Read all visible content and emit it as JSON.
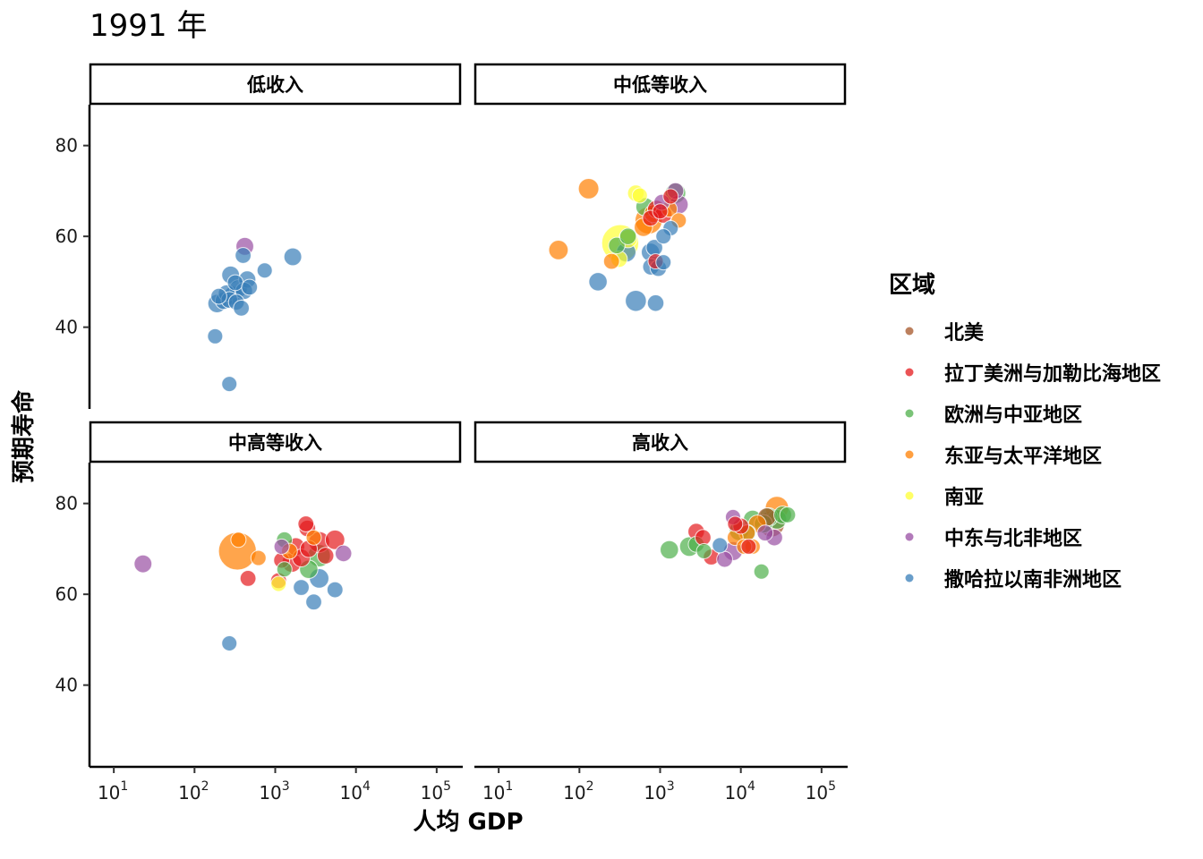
{
  "title": "1991 年",
  "chart_data": {
    "type": "scatter",
    "title": "1991 年",
    "xlabel": "人均 GDP",
    "ylabel": "预期寿命",
    "x_scale": "log10",
    "xlim": [
      5,
      200000
    ],
    "ylim": [
      22,
      89
    ],
    "x_tick_labels": [
      "10^1",
      "10^2",
      "10^3",
      "10^4",
      "10^5"
    ],
    "y_tick_labels": [
      "40",
      "60",
      "80"
    ],
    "grid": false,
    "legend": {
      "title": "区域",
      "position": "right",
      "items": [
        {
          "label": "北美",
          "color": "#A65628"
        },
        {
          "label": "拉丁美洲与加勒比海地区",
          "color": "#E41A1C"
        },
        {
          "label": "欧洲与中亚地区",
          "color": "#4DAF4A"
        },
        {
          "label": "东亚与太平洋地区",
          "color": "#FF7F00"
        },
        {
          "label": "南亚",
          "color": "#FFFF33"
        },
        {
          "label": "中东与北非地区",
          "color": "#984EA3"
        },
        {
          "label": "撒哈拉以南非洲地区",
          "color": "#377EB8"
        }
      ]
    },
    "size_note": "point area proportional to population (relative)",
    "panels": [
      {
        "title": "低收入",
        "points": [
          {
            "region": "中东与北非地区",
            "x": 420,
            "y": 57.8,
            "size": 1.5
          },
          {
            "region": "撒哈拉以南非洲地区",
            "x": 1650,
            "y": 55.5,
            "size": 1.5
          },
          {
            "region": "撒哈拉以南非洲地区",
            "x": 400,
            "y": 55.8,
            "size": 1.2
          },
          {
            "region": "撒哈拉以南非洲地区",
            "x": 740,
            "y": 52.5,
            "size": 1.1
          },
          {
            "region": "撒哈拉以南非洲地区",
            "x": 280,
            "y": 51.5,
            "size": 1.5
          },
          {
            "region": "撒哈拉以南非洲地区",
            "x": 450,
            "y": 50.5,
            "size": 1.4
          },
          {
            "region": "撒哈拉以南非洲地区",
            "x": 320,
            "y": 49.8,
            "size": 1.2
          },
          {
            "region": "撒哈拉以南非洲地区",
            "x": 350,
            "y": 48.5,
            "size": 1.5
          },
          {
            "region": "撒哈拉以南非洲地区",
            "x": 480,
            "y": 48.8,
            "size": 1.2
          },
          {
            "region": "撒哈拉以南非洲地区",
            "x": 250,
            "y": 47.5,
            "size": 1.3
          },
          {
            "region": "撒哈拉以南非洲地区",
            "x": 300,
            "y": 47.0,
            "size": 1.6
          },
          {
            "region": "撒哈拉以南非洲地区",
            "x": 200,
            "y": 46.8,
            "size": 1.2
          },
          {
            "region": "撒哈拉以南非洲地区",
            "x": 410,
            "y": 48.0,
            "size": 1.4
          },
          {
            "region": "撒哈拉以南非洲地区",
            "x": 270,
            "y": 46.0,
            "size": 1.3
          },
          {
            "region": "撒哈拉以南非洲地区",
            "x": 330,
            "y": 45.5,
            "size": 1.2
          },
          {
            "region": "撒哈拉以南非洲地区",
            "x": 230,
            "y": 45.8,
            "size": 1.4
          },
          {
            "region": "撒哈拉以南非洲地区",
            "x": 190,
            "y": 45.2,
            "size": 1.6
          },
          {
            "region": "撒哈拉以南非洲地区",
            "x": 380,
            "y": 44.2,
            "size": 1.2
          },
          {
            "region": "撒哈拉以南非洲地区",
            "x": 180,
            "y": 38.0,
            "size": 1.1
          },
          {
            "region": "撒哈拉以南非洲地区",
            "x": 270,
            "y": 27.5,
            "size": 1.1
          }
        ]
      },
      {
        "title": "中低等收入",
        "points": [
          {
            "region": "东亚与太平洋地区",
            "x": 130,
            "y": 70.5,
            "size": 2.0
          },
          {
            "region": "东亚与太平洋地区",
            "x": 55,
            "y": 57.0,
            "size": 1.8
          },
          {
            "region": "南亚",
            "x": 320,
            "y": 58.5,
            "size": 6.5
          },
          {
            "region": "南亚",
            "x": 500,
            "y": 69.5,
            "size": 1.3
          },
          {
            "region": "南亚",
            "x": 560,
            "y": 69.0,
            "size": 1.1
          },
          {
            "region": "南亚",
            "x": 400,
            "y": 59.5,
            "size": 1.6
          },
          {
            "region": "南亚",
            "x": 310,
            "y": 55.0,
            "size": 1.3
          },
          {
            "region": "东亚与太平洋地区",
            "x": 720,
            "y": 63.5,
            "size": 3.5
          },
          {
            "region": "东亚与太平洋地区",
            "x": 620,
            "y": 62.0,
            "size": 1.6
          },
          {
            "region": "东亚与太平洋地区",
            "x": 820,
            "y": 65.0,
            "size": 1.5
          },
          {
            "region": "东亚与太平洋地区",
            "x": 1700,
            "y": 63.5,
            "size": 1.1
          },
          {
            "region": "东亚与太平洋地区",
            "x": 1300,
            "y": 66.0,
            "size": 1.2
          },
          {
            "region": "东亚与太平洋地区",
            "x": 250,
            "y": 54.5,
            "size": 1.2
          },
          {
            "region": "拉丁美洲与加勒比海地区",
            "x": 900,
            "y": 66.0,
            "size": 1.5
          },
          {
            "region": "拉丁美洲与加勒比海地区",
            "x": 1100,
            "y": 64.8,
            "size": 1.4
          },
          {
            "region": "拉丁美洲与加勒比海地区",
            "x": 1350,
            "y": 68.8,
            "size": 1.1
          },
          {
            "region": "拉丁美洲与加勒比海地区",
            "x": 760,
            "y": 64.0,
            "size": 1.2
          },
          {
            "region": "拉丁美洲与加勒比海地区",
            "x": 1000,
            "y": 65.5,
            "size": 1.1
          },
          {
            "region": "拉丁美洲与加勒比海地区",
            "x": 880,
            "y": 54.5,
            "size": 1.1
          },
          {
            "region": "欧洲与中亚地区",
            "x": 1550,
            "y": 69.5,
            "size": 2.0
          },
          {
            "region": "欧洲与中亚地区",
            "x": 650,
            "y": 66.5,
            "size": 1.6
          },
          {
            "region": "欧洲与中亚地区",
            "x": 290,
            "y": 58.0,
            "size": 1.3
          },
          {
            "region": "欧洲与中亚地区",
            "x": 400,
            "y": 60.0,
            "size": 1.3
          },
          {
            "region": "中东与北非地区",
            "x": 1700,
            "y": 67.0,
            "size": 1.7
          },
          {
            "region": "中东与北非地区",
            "x": 1550,
            "y": 70.0,
            "size": 1.3
          },
          {
            "region": "中东与北非地区",
            "x": 1050,
            "y": 67.5,
            "size": 1.2
          },
          {
            "region": "撒哈拉以南非洲地区",
            "x": 380,
            "y": 56.5,
            "size": 1.8
          },
          {
            "region": "撒哈拉以南非洲地区",
            "x": 760,
            "y": 56.5,
            "size": 1.6
          },
          {
            "region": "撒哈拉以南非洲地区",
            "x": 850,
            "y": 57.5,
            "size": 1.3
          },
          {
            "region": "撒哈拉以南非洲地区",
            "x": 1350,
            "y": 61.8,
            "size": 1.1
          },
          {
            "region": "撒哈拉以南非洲地区",
            "x": 1100,
            "y": 60.0,
            "size": 1.1
          },
          {
            "region": "撒哈拉以南非洲地区",
            "x": 770,
            "y": 53.3,
            "size": 1.3
          },
          {
            "region": "撒哈拉以南非洲地区",
            "x": 950,
            "y": 53.0,
            "size": 1.3
          },
          {
            "region": "撒哈拉以南非洲地区",
            "x": 1100,
            "y": 54.3,
            "size": 1.1
          },
          {
            "region": "撒哈拉以南非洲地区",
            "x": 170,
            "y": 50.0,
            "size": 1.6
          },
          {
            "region": "撒哈拉以南非洲地区",
            "x": 500,
            "y": 45.8,
            "size": 2.1
          },
          {
            "region": "撒哈拉以南非洲地区",
            "x": 880,
            "y": 45.3,
            "size": 1.3
          }
        ]
      },
      {
        "title": "中高等收入",
        "points": [
          {
            "region": "东亚与太平洋地区",
            "x": 340,
            "y": 69.5,
            "size": 6.8
          },
          {
            "region": "中东与北非地区",
            "x": 23,
            "y": 66.7,
            "size": 1.5
          },
          {
            "region": "东亚与太平洋地区",
            "x": 350,
            "y": 72.0,
            "size": 1.1
          },
          {
            "region": "东亚与太平洋地区",
            "x": 620,
            "y": 68.0,
            "size": 1.1
          },
          {
            "region": "拉丁美洲与加勒比海地区",
            "x": 460,
            "y": 63.5,
            "size": 1.2
          },
          {
            "region": "撒哈拉以南非洲地区",
            "x": 270,
            "y": 49.2,
            "size": 1.1
          },
          {
            "region": "拉丁美洲与加勒比海地区",
            "x": 1100,
            "y": 63.0,
            "size": 1.2
          },
          {
            "region": "南亚",
            "x": 1100,
            "y": 62.3,
            "size": 1.1
          },
          {
            "region": "拉丁美洲与加勒比海地区",
            "x": 2400,
            "y": 75.5,
            "size": 1.2
          },
          {
            "region": "拉丁美洲与加勒比海地区",
            "x": 2500,
            "y": 74.5,
            "size": 1.3
          },
          {
            "region": "拉丁美洲与加勒比海地区",
            "x": 3500,
            "y": 71.5,
            "size": 2.1
          },
          {
            "region": "拉丁美洲与加勒比海地区",
            "x": 5500,
            "y": 72.0,
            "size": 1.8
          },
          {
            "region": "拉丁美洲与加勒比海地区",
            "x": 1800,
            "y": 70.5,
            "size": 1.5
          },
          {
            "region": "拉丁美洲与加勒比海地区",
            "x": 2600,
            "y": 70.0,
            "size": 1.4
          },
          {
            "region": "拉丁美洲与加勒比海地区",
            "x": 1600,
            "y": 67.0,
            "size": 1.8
          },
          {
            "region": "拉丁美洲与加勒比海地区",
            "x": 2100,
            "y": 68.0,
            "size": 1.5
          },
          {
            "region": "拉丁美洲与加勒比海地区",
            "x": 1200,
            "y": 67.5,
            "size": 1.2
          },
          {
            "region": "拉丁美洲与加勒比海地区",
            "x": 4200,
            "y": 68.5,
            "size": 1.3
          },
          {
            "region": "欧洲与中亚地区",
            "x": 3500,
            "y": 68.5,
            "size": 2.4
          },
          {
            "region": "欧洲与中亚地区",
            "x": 2600,
            "y": 65.5,
            "size": 1.6
          },
          {
            "region": "欧洲与中亚地区",
            "x": 1300,
            "y": 72.0,
            "size": 1.2
          },
          {
            "region": "欧洲与中亚地区",
            "x": 1300,
            "y": 65.5,
            "size": 1.1
          },
          {
            "region": "中东与北非地区",
            "x": 7000,
            "y": 69.0,
            "size": 1.3
          },
          {
            "region": "中东与北非地区",
            "x": 1200,
            "y": 70.5,
            "size": 1.1
          },
          {
            "region": "东亚与太平洋地区",
            "x": 1500,
            "y": 69.5,
            "size": 1.2
          },
          {
            "region": "东亚与太平洋地区",
            "x": 3000,
            "y": 72.5,
            "size": 1.1
          },
          {
            "region": "撒哈拉以南非洲地区",
            "x": 3500,
            "y": 63.5,
            "size": 1.8
          },
          {
            "region": "撒哈拉以南非洲地区",
            "x": 2100,
            "y": 61.5,
            "size": 1.2
          },
          {
            "region": "撒哈拉以南非洲地区",
            "x": 5500,
            "y": 61.0,
            "size": 1.2
          },
          {
            "region": "撒哈拉以南非洲地区",
            "x": 3000,
            "y": 58.3,
            "size": 1.2
          }
        ]
      },
      {
        "title": "高收入",
        "points": [
          {
            "region": "欧洲与中亚地区",
            "x": 1300,
            "y": 69.8,
            "size": 1.6
          },
          {
            "region": "欧洲与中亚地区",
            "x": 2300,
            "y": 70.5,
            "size": 1.8
          },
          {
            "region": "欧洲与中亚地区",
            "x": 2800,
            "y": 71.0,
            "size": 1.2
          },
          {
            "region": "欧洲与中亚地区",
            "x": 3500,
            "y": 69.5,
            "size": 1.1
          },
          {
            "region": "拉丁美洲与加勒比海地区",
            "x": 2800,
            "y": 73.8,
            "size": 1.3
          },
          {
            "region": "拉丁美洲与加勒比海地区",
            "x": 3400,
            "y": 72.5,
            "size": 1.2
          },
          {
            "region": "拉丁美洲与加勒比海地区",
            "x": 4300,
            "y": 68.2,
            "size": 1.2
          },
          {
            "region": "撒哈拉以南非洲地区",
            "x": 5500,
            "y": 70.8,
            "size": 1.1
          },
          {
            "region": "中东与北非地区",
            "x": 6300,
            "y": 67.7,
            "size": 1.2
          },
          {
            "region": "中东与北非地区",
            "x": 8000,
            "y": 69.5,
            "size": 1.7
          },
          {
            "region": "中东与北非地区",
            "x": 8000,
            "y": 77.0,
            "size": 1.1
          },
          {
            "region": "中东与北非地区",
            "x": 20000,
            "y": 73.5,
            "size": 1.2
          },
          {
            "region": "中东与北非地区",
            "x": 26000,
            "y": 72.5,
            "size": 1.3
          },
          {
            "region": "欧洲与中亚地区",
            "x": 9500,
            "y": 74.0,
            "size": 1.8
          },
          {
            "region": "欧洲与中亚地区",
            "x": 14000,
            "y": 76.5,
            "size": 1.6
          },
          {
            "region": "欧洲与中亚地区",
            "x": 19000,
            "y": 75.5,
            "size": 1.6
          },
          {
            "region": "欧洲与中亚地区",
            "x": 22000,
            "y": 77.0,
            "size": 1.7
          },
          {
            "region": "欧洲与中亚地区",
            "x": 28000,
            "y": 76.5,
            "size": 1.8
          },
          {
            "region": "欧洲与中亚地区",
            "x": 33000,
            "y": 77.5,
            "size": 1.5
          },
          {
            "region": "欧洲与中亚地区",
            "x": 38000,
            "y": 77.5,
            "size": 1.2
          },
          {
            "region": "欧洲与中亚地区",
            "x": 18000,
            "y": 65.0,
            "size": 1.1
          },
          {
            "region": "欧洲与中亚地区",
            "x": 12000,
            "y": 73.5,
            "size": 1.4
          },
          {
            "region": "东亚与太平洋地区",
            "x": 28000,
            "y": 79.0,
            "size": 2.6
          },
          {
            "region": "东亚与太平洋地区",
            "x": 16000,
            "y": 75.5,
            "size": 1.5
          },
          {
            "region": "东亚与太平洋地区",
            "x": 12000,
            "y": 73.5,
            "size": 1.2
          },
          {
            "region": "东亚与太平洋地区",
            "x": 14000,
            "y": 70.5,
            "size": 1.1
          },
          {
            "region": "东亚与太平洋地区",
            "x": 11000,
            "y": 70.5,
            "size": 1.1
          },
          {
            "region": "东亚与太平洋地区",
            "x": 8500,
            "y": 72.5,
            "size": 1.2
          },
          {
            "region": "拉丁美洲与加勒比海地区",
            "x": 10000,
            "y": 75.0,
            "size": 1.2
          },
          {
            "region": "拉丁美洲与加勒比海地区",
            "x": 12500,
            "y": 70.5,
            "size": 1.1
          },
          {
            "region": "拉丁美洲与加勒比海地区",
            "x": 8500,
            "y": 75.5,
            "size": 1.1
          },
          {
            "region": "北美",
            "x": 24000,
            "y": 75.5,
            "size": 3.2
          },
          {
            "region": "北美",
            "x": 21000,
            "y": 77.0,
            "size": 1.6
          }
        ]
      }
    ]
  }
}
